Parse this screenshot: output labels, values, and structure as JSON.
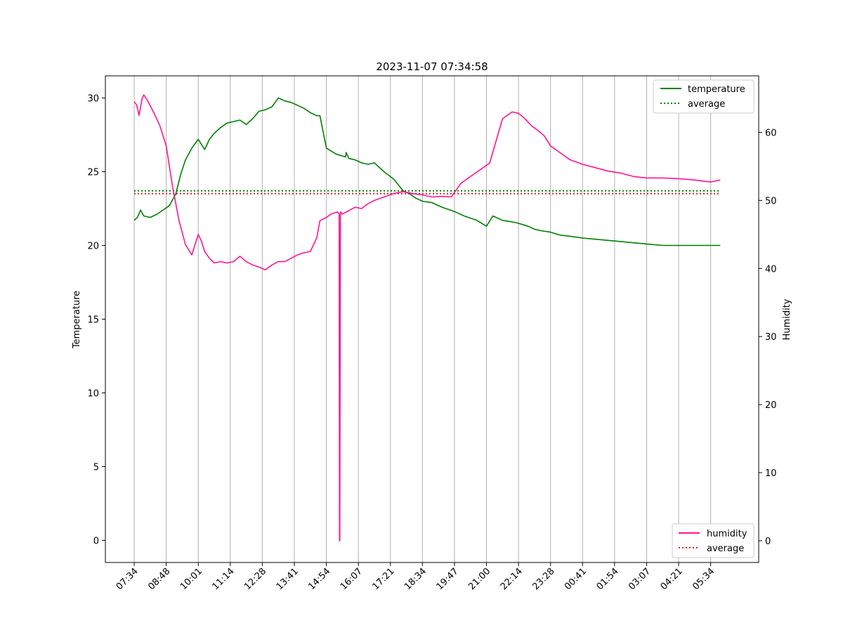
{
  "chart_data": {
    "type": "line",
    "title": "2023-11-07 07:34:58",
    "ylabel_left": "Temperature",
    "ylabel_right": "Humidity",
    "grid": "vertical lines at x ticks",
    "x_tick_labels": [
      "07:34",
      "08:48",
      "10:01",
      "11:14",
      "12:28",
      "13:41",
      "14:54",
      "16:07",
      "17:21",
      "18:34",
      "19:47",
      "21:00",
      "22:14",
      "23:28",
      "00:41",
      "01:54",
      "03:07",
      "04:21",
      "05:34"
    ],
    "ylim_left": [
      -1.5,
      31.5
    ],
    "yticks_left": [
      0,
      5,
      10,
      15,
      20,
      25,
      30
    ],
    "ylim_right": [
      -3.2,
      68.3
    ],
    "yticks_right": [
      0,
      10,
      20,
      30,
      40,
      50,
      60
    ],
    "x_range_ticks": [
      -0.9,
      19.5
    ],
    "legends": [
      {
        "position": "top-right",
        "entries": [
          {
            "label": "temperature",
            "color": "#008000",
            "style": "solid"
          },
          {
            "label": "average",
            "color": "#008000",
            "style": "dotted"
          }
        ]
      },
      {
        "position": "bottom-right",
        "entries": [
          {
            "label": "humidity",
            "color": "#ff1493",
            "style": "solid"
          },
          {
            "label": "average",
            "color": "#d62728",
            "style": "dotted"
          }
        ]
      }
    ],
    "series": [
      {
        "name": "temperature",
        "axis": "left",
        "color": "#008000",
        "x": [
          0,
          0.1,
          0.2,
          0.3,
          0.5,
          0.7,
          0.9,
          1.1,
          1.3,
          1.45,
          1.6,
          1.8,
          2.0,
          2.2,
          2.35,
          2.5,
          2.7,
          2.9,
          3.1,
          3.3,
          3.5,
          3.7,
          3.9,
          4.1,
          4.3,
          4.5,
          4.7,
          4.9,
          5.1,
          5.3,
          5.5,
          5.7,
          5.8,
          6.0,
          6.15,
          6.3,
          6.6,
          6.62,
          6.7,
          6.9,
          7.1,
          7.3,
          7.5,
          7.8,
          8.1,
          8.4,
          8.6,
          8.8,
          9.0,
          9.3,
          9.6,
          10.0,
          10.3,
          10.7,
          11.0,
          11.2,
          11.5,
          11.8,
          12.0,
          12.3,
          12.5,
          12.7,
          13.0,
          13.3,
          13.7,
          14.0,
          14.5,
          15.0,
          15.5,
          16.0,
          16.5,
          17.0,
          17.5,
          18.0,
          18.3
        ],
        "values": [
          21.7,
          21.9,
          22.4,
          22.0,
          21.9,
          22.1,
          22.4,
          22.7,
          23.5,
          24.8,
          25.8,
          26.6,
          27.2,
          26.5,
          27.2,
          27.6,
          28.0,
          28.3,
          28.4,
          28.5,
          28.2,
          28.6,
          29.1,
          29.2,
          29.4,
          30.0,
          29.8,
          29.7,
          29.5,
          29.3,
          29.0,
          28.8,
          28.8,
          26.6,
          26.4,
          26.2,
          26.0,
          26.3,
          25.9,
          25.8,
          25.6,
          25.5,
          25.6,
          25.0,
          24.5,
          23.7,
          23.5,
          23.2,
          23.0,
          22.9,
          22.6,
          22.3,
          22.0,
          21.7,
          21.3,
          22.0,
          21.7,
          21.6,
          21.5,
          21.3,
          21.1,
          21.0,
          20.9,
          20.7,
          20.6,
          20.5,
          20.4,
          20.3,
          20.2,
          20.1,
          20.0,
          20.0,
          20.0,
          20.0,
          20.0
        ]
      },
      {
        "name": "average",
        "axis": "left",
        "color": "#008000",
        "style": "dotted",
        "x": [
          0,
          18.3
        ],
        "values": [
          23.7,
          23.7
        ]
      },
      {
        "name": "humidity",
        "axis": "right",
        "color": "#ff1493",
        "x": [
          0,
          0.08,
          0.15,
          0.25,
          0.3,
          0.4,
          0.6,
          0.8,
          1.0,
          1.2,
          1.4,
          1.6,
          1.8,
          2.0,
          2.1,
          2.2,
          2.35,
          2.5,
          2.7,
          2.9,
          3.1,
          3.3,
          3.5,
          3.7,
          3.9,
          4.1,
          4.3,
          4.5,
          4.7,
          4.9,
          5.1,
          5.3,
          5.5,
          5.7,
          5.8,
          6.0,
          6.15,
          6.35,
          6.4,
          6.41,
          6.42,
          6.44,
          6.5,
          6.7,
          6.9,
          7.1,
          7.3,
          7.5,
          7.8,
          8.1,
          8.4,
          8.7,
          9.0,
          9.3,
          9.6,
          9.9,
          10.2,
          10.5,
          10.8,
          11.1,
          11.5,
          11.8,
          12.0,
          12.2,
          12.4,
          12.6,
          12.8,
          13.0,
          13.3,
          13.6,
          14.0,
          14.4,
          14.8,
          15.2,
          15.6,
          16.0,
          16.5,
          17.0,
          17.5,
          18.0,
          18.3
        ],
        "values": [
          64.5,
          64.0,
          62.5,
          65.0,
          65.5,
          64.8,
          63.0,
          61.0,
          58.0,
          52.0,
          47.0,
          43.5,
          42.0,
          45.0,
          44.0,
          42.5,
          41.5,
          40.8,
          41.0,
          40.8,
          41.0,
          41.8,
          41.0,
          40.5,
          40.2,
          39.8,
          40.5,
          41.0,
          41.0,
          41.5,
          42.0,
          42.3,
          42.5,
          44.5,
          47.0,
          47.5,
          48.0,
          48.3,
          48.0,
          0.0,
          0.0,
          48.3,
          48.0,
          48.5,
          49.0,
          48.8,
          49.5,
          50.0,
          50.5,
          51.0,
          51.3,
          51.0,
          50.8,
          50.5,
          50.6,
          50.5,
          52.5,
          53.5,
          54.5,
          55.5,
          62.0,
          63.0,
          62.8,
          62.0,
          61.0,
          60.3,
          59.5,
          58.0,
          57.0,
          56.0,
          55.3,
          54.8,
          54.3,
          54.0,
          53.5,
          53.3,
          53.3,
          53.2,
          53.0,
          52.7,
          53.0
        ]
      },
      {
        "name": "average",
        "axis": "right",
        "color": "#d62728",
        "style": "dotted",
        "x": [
          0,
          18.3
        ],
        "values": [
          51.0,
          51.0
        ]
      }
    ]
  }
}
